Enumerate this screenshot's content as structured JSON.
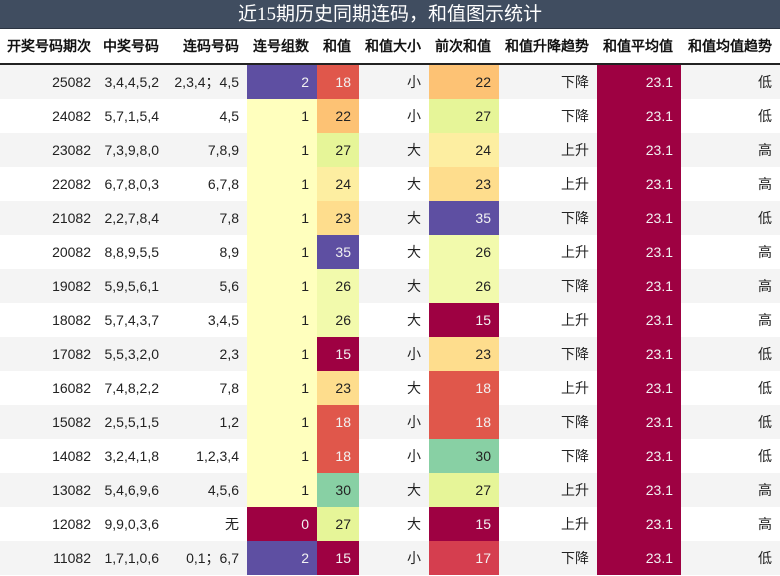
{
  "title": "近15期历史同期连码，和值图示统计",
  "headers": [
    "开奖号码期次",
    "中奖号码",
    "连码号码",
    "连号组数",
    "和值",
    "和值大小",
    "前次和值",
    "和值升降趋势",
    "和值平均值",
    "和值均值趋势"
  ],
  "colors": {
    "purple": "#5e4fa2",
    "red": "#e0574b",
    "crimson": "#9e0142",
    "rose": "#d53e4f",
    "orange": "#fdc274",
    "light_orange": "#fedd8d",
    "pale_yellow": "#fdeea1",
    "yellow": "#ffffbe",
    "lime": "#e6f598",
    "pale_lime": "#f2faac",
    "green": "#88d0a4"
  },
  "rows": [
    {
      "period": "25082",
      "numbers": "3,4,4,5,2",
      "consecutive": "2,3,4；4,5",
      "groups": "2",
      "groups_color": "#5e4fa2",
      "sum": "18",
      "sum_color": "#e0574b",
      "size": "小",
      "prev_sum": "22",
      "prev_color": "#fdc274",
      "trend": "下降",
      "avg": "23.1",
      "avg_trend": "低"
    },
    {
      "period": "24082",
      "numbers": "5,7,1,5,4",
      "consecutive": "4,5",
      "groups": "1",
      "groups_color": "#ffffbe",
      "sum": "22",
      "sum_color": "#fdc274",
      "size": "小",
      "prev_sum": "27",
      "prev_color": "#e6f598",
      "trend": "下降",
      "avg": "23.1",
      "avg_trend": "低"
    },
    {
      "period": "23082",
      "numbers": "7,3,9,8,0",
      "consecutive": "7,8,9",
      "groups": "1",
      "groups_color": "#ffffbe",
      "sum": "27",
      "sum_color": "#e6f598",
      "size": "大",
      "prev_sum": "24",
      "prev_color": "#fdeea1",
      "trend": "上升",
      "avg": "23.1",
      "avg_trend": "高"
    },
    {
      "period": "22082",
      "numbers": "6,7,8,0,3",
      "consecutive": "6,7,8",
      "groups": "1",
      "groups_color": "#ffffbe",
      "sum": "24",
      "sum_color": "#fdeea1",
      "size": "大",
      "prev_sum": "23",
      "prev_color": "#fedd8d",
      "trend": "上升",
      "avg": "23.1",
      "avg_trend": "高"
    },
    {
      "period": "21082",
      "numbers": "2,2,7,8,4",
      "consecutive": "7,8",
      "groups": "1",
      "groups_color": "#ffffbe",
      "sum": "23",
      "sum_color": "#fedd8d",
      "size": "大",
      "prev_sum": "35",
      "prev_color": "#5e4fa2",
      "trend": "下降",
      "avg": "23.1",
      "avg_trend": "低"
    },
    {
      "period": "20082",
      "numbers": "8,8,9,5,5",
      "consecutive": "8,9",
      "groups": "1",
      "groups_color": "#ffffbe",
      "sum": "35",
      "sum_color": "#5e4fa2",
      "size": "大",
      "prev_sum": "26",
      "prev_color": "#f2faac",
      "trend": "上升",
      "avg": "23.1",
      "avg_trend": "高"
    },
    {
      "period": "19082",
      "numbers": "5,9,5,6,1",
      "consecutive": "5,6",
      "groups": "1",
      "groups_color": "#ffffbe",
      "sum": "26",
      "sum_color": "#f2faac",
      "size": "大",
      "prev_sum": "26",
      "prev_color": "#f2faac",
      "trend": "下降",
      "avg": "23.1",
      "avg_trend": "高"
    },
    {
      "period": "18082",
      "numbers": "5,7,4,3,7",
      "consecutive": "3,4,5",
      "groups": "1",
      "groups_color": "#ffffbe",
      "sum": "26",
      "sum_color": "#f2faac",
      "size": "大",
      "prev_sum": "15",
      "prev_color": "#9e0142",
      "trend": "上升",
      "avg": "23.1",
      "avg_trend": "高"
    },
    {
      "period": "17082",
      "numbers": "5,5,3,2,0",
      "consecutive": "2,3",
      "groups": "1",
      "groups_color": "#ffffbe",
      "sum": "15",
      "sum_color": "#9e0142",
      "size": "小",
      "prev_sum": "23",
      "prev_color": "#fedd8d",
      "trend": "下降",
      "avg": "23.1",
      "avg_trend": "低"
    },
    {
      "period": "16082",
      "numbers": "7,4,8,2,2",
      "consecutive": "7,8",
      "groups": "1",
      "groups_color": "#ffffbe",
      "sum": "23",
      "sum_color": "#fedd8d",
      "size": "大",
      "prev_sum": "18",
      "prev_color": "#e0574b",
      "trend": "上升",
      "avg": "23.1",
      "avg_trend": "低"
    },
    {
      "period": "15082",
      "numbers": "2,5,5,1,5",
      "consecutive": "1,2",
      "groups": "1",
      "groups_color": "#ffffbe",
      "sum": "18",
      "sum_color": "#e0574b",
      "size": "小",
      "prev_sum": "18",
      "prev_color": "#e0574b",
      "trend": "下降",
      "avg": "23.1",
      "avg_trend": "低"
    },
    {
      "period": "14082",
      "numbers": "3,2,4,1,8",
      "consecutive": "1,2,3,4",
      "groups": "1",
      "groups_color": "#ffffbe",
      "sum": "18",
      "sum_color": "#e0574b",
      "size": "小",
      "prev_sum": "30",
      "prev_color": "#88d0a4",
      "trend": "下降",
      "avg": "23.1",
      "avg_trend": "低"
    },
    {
      "period": "13082",
      "numbers": "5,4,6,9,6",
      "consecutive": "4,5,6",
      "groups": "1",
      "groups_color": "#ffffbe",
      "sum": "30",
      "sum_color": "#88d0a4",
      "size": "大",
      "prev_sum": "27",
      "prev_color": "#e6f598",
      "trend": "上升",
      "avg": "23.1",
      "avg_trend": "高"
    },
    {
      "period": "12082",
      "numbers": "9,9,0,3,6",
      "consecutive": "无",
      "groups": "0",
      "groups_color": "#9e0142",
      "sum": "27",
      "sum_color": "#e6f598",
      "size": "大",
      "prev_sum": "15",
      "prev_color": "#9e0142",
      "trend": "上升",
      "avg": "23.1",
      "avg_trend": "高"
    },
    {
      "period": "11082",
      "numbers": "1,7,1,0,6",
      "consecutive": "0,1；6,7",
      "groups": "2",
      "groups_color": "#5e4fa2",
      "sum": "15",
      "sum_color": "#9e0142",
      "size": "小",
      "prev_sum": "17",
      "prev_color": "#d53e4f",
      "trend": "下降",
      "avg": "23.1",
      "avg_trend": "低"
    }
  ]
}
